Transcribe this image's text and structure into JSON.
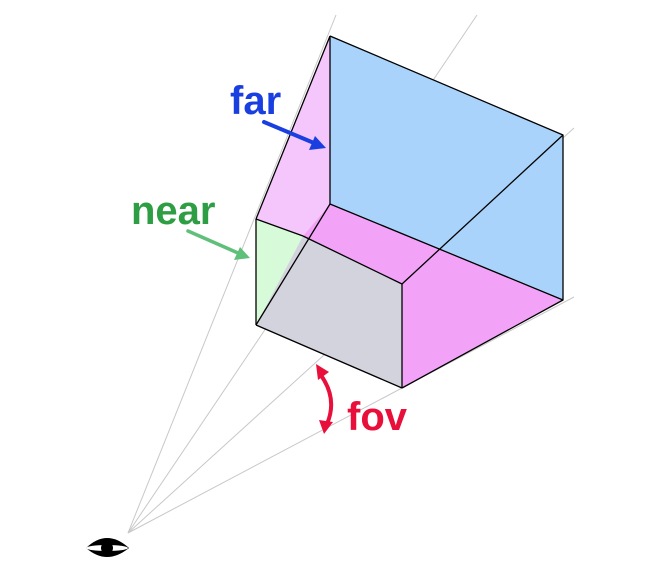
{
  "labels": {
    "far": "far",
    "near": "near",
    "fov": "fov"
  },
  "icons": {
    "eye": "eye-icon"
  },
  "colors": {
    "far_label": "#1a3fe0",
    "near_label": "#2e9e44",
    "fov_label": "#e8103a",
    "far_face": "#a9d3fb",
    "side_face": "#f2a3f8",
    "near_face": "#d7fbd9",
    "bottom_face": "#d2d3dc",
    "guide_line": "#c8c8c8",
    "edge": "#000000"
  }
}
